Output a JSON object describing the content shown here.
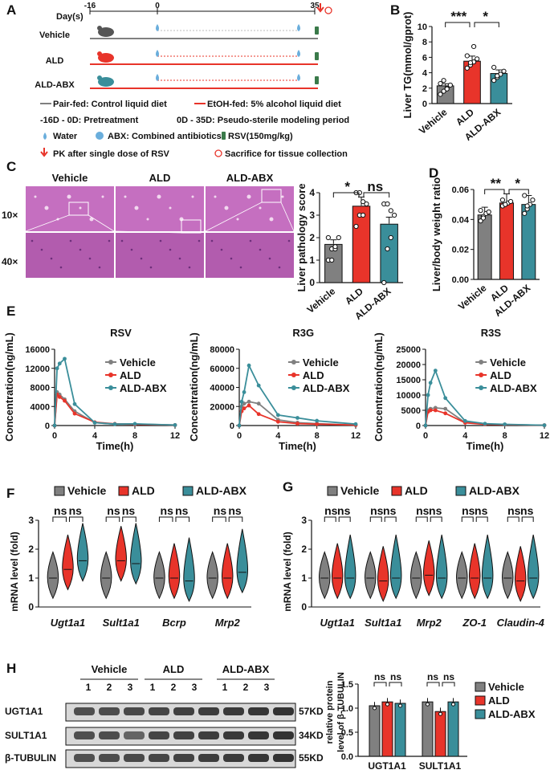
{
  "colors": {
    "vehicle": "#808080",
    "ald": "#e8342a",
    "abx": "#3a8e9a",
    "dark": "#222222",
    "wblight": "#d8d8d8"
  },
  "panelA": {
    "label": "A",
    "days_label": "Day(s)",
    "day_ticks": [
      "-16",
      "0",
      "35"
    ],
    "groups": [
      "Vehicle",
      "ALD",
      "ALD-ABX"
    ],
    "legend": [
      "Pair-fed: Control liquid diet",
      "EtOH-fed: 5% alcohol liquid diet",
      "-16D - 0D: Pretreatment",
      "0D - 35D: Pseudo-sterile modeling period",
      "Water",
      "ABX: Combined antibiotics",
      "RSV(150mg/kg)",
      "PK after single dose of RSV",
      "Sacrifice for tissue collection"
    ]
  },
  "panelB": {
    "label": "B",
    "ylabel": "Liver TG(mmol/gprot)",
    "sig": [
      "***",
      "*"
    ]
  },
  "panelC": {
    "label": "C",
    "columns": [
      "Vehicle",
      "ALD",
      "ALD-ABX"
    ],
    "rows": [
      "10×",
      "40×"
    ],
    "score_ylabel": "Liver pathology score",
    "sig": [
      "*",
      "ns"
    ]
  },
  "panelD": {
    "label": "D",
    "ylabel": "Liver/body weight ratio",
    "sig": [
      "**",
      "*"
    ]
  },
  "panelE": {
    "label": "E",
    "ylabel": "Concentration(ng/mL)",
    "xlabel": "Time(h)"
  },
  "panelF": {
    "label": "F",
    "ylabel": "mRNA  level (fold)"
  },
  "panelG": {
    "label": "G",
    "ylabel": "mRNA  level (fold)"
  },
  "panelH": {
    "label": "H",
    "groups": [
      "Vehicle",
      "ALD",
      "ALD-ABX"
    ],
    "lanes": [
      "1",
      "2",
      "3"
    ],
    "proteins": [
      "UGT1A1",
      "SULT1A1",
      "β-TUBULIN"
    ],
    "sizes": [
      "57KD",
      "34KD",
      "55KD"
    ],
    "ylabel1": "relative protein",
    "ylabel2": "level of β-TUBULIN"
  },
  "chart_data": [
    {
      "id": "B",
      "type": "bar",
      "title": "",
      "ylabel": "Liver TG(mmol/gprot)",
      "ylim": [
        0,
        10
      ],
      "categories": [
        "Vehicle",
        "ALD",
        "ALD-ABX"
      ],
      "values": [
        2.3,
        5.5,
        3.9
      ],
      "points": [
        [
          1.2,
          1.6,
          2.0,
          2.4,
          2.6,
          3.0,
          1.9
        ],
        [
          4.6,
          5.0,
          5.4,
          5.8,
          6.2,
          5.3,
          7.4
        ],
        [
          3.0,
          3.4,
          3.8,
          4.2,
          4.7,
          3.6
        ]
      ],
      "yticks": [
        "0",
        "2",
        "4",
        "6",
        "8",
        "10"
      ]
    },
    {
      "id": "C",
      "type": "bar",
      "title": "",
      "ylabel": "Liver pathology score",
      "ylim": [
        0,
        4
      ],
      "categories": [
        "Vehicle",
        "ALD",
        "ALD-ABX"
      ],
      "values": [
        1.7,
        3.4,
        2.6
      ],
      "points": [
        [
          1.0,
          1.5,
          1.5,
          2.0,
          2.0,
          1.0,
          1.6
        ],
        [
          2.5,
          3.0,
          3.0,
          3.5,
          4.0,
          4.0,
          3.6
        ],
        [
          0.0,
          1.5,
          2.0,
          3.0,
          3.5,
          3.5,
          3.2
        ]
      ],
      "yticks": [
        "0",
        "1",
        "2",
        "3",
        "4"
      ]
    },
    {
      "id": "D",
      "type": "bar",
      "title": "",
      "ylabel": "Liver/body weight ratio",
      "ylim": [
        0,
        0.06
      ],
      "categories": [
        "Vehicle",
        "ALD",
        "ALD-ABX"
      ],
      "values": [
        0.043,
        0.051,
        0.05
      ],
      "points": [
        [
          0.039,
          0.042,
          0.044,
          0.045,
          0.046,
          0.041
        ],
        [
          0.049,
          0.05,
          0.051,
          0.052,
          0.053,
          0.05
        ],
        [
          0.044,
          0.047,
          0.05,
          0.053,
          0.056,
          0.049
        ]
      ],
      "yticks": [
        "0.00",
        "0.02",
        "0.04",
        "0.06"
      ]
    },
    {
      "id": "E1",
      "type": "line",
      "title": "RSV",
      "xlabel": "Time(h)",
      "ylabel": "Concentration(ng/mL)",
      "x": [
        0,
        0.25,
        0.5,
        1,
        2,
        4,
        6,
        8,
        12
      ],
      "xlim": [
        0,
        12
      ],
      "ylim": [
        0,
        16000
      ],
      "yticks": [
        "0",
        "4000",
        "8000",
        "12000",
        "16000"
      ],
      "xticks": [
        "0",
        "4",
        "8",
        "12"
      ],
      "series": [
        {
          "name": "Vehicle",
          "values": [
            0,
            7000,
            6500,
            5500,
            3000,
            600,
            300,
            300,
            100
          ]
        },
        {
          "name": "ALD",
          "values": [
            0,
            6500,
            6000,
            5200,
            2500,
            700,
            350,
            250,
            100
          ]
        },
        {
          "name": "ALD-ABX",
          "values": [
            0,
            12000,
            13000,
            14000,
            4500,
            600,
            300,
            350,
            100
          ]
        }
      ]
    },
    {
      "id": "E2",
      "type": "line",
      "title": "R3G",
      "xlabel": "Time(h)",
      "ylabel": "",
      "x": [
        0,
        0.25,
        0.5,
        1,
        2,
        4,
        6,
        8,
        12
      ],
      "xlim": [
        0,
        12
      ],
      "ylim": [
        0,
        80000
      ],
      "yticks": [
        "0",
        "20000",
        "40000",
        "60000",
        "80000"
      ],
      "xticks": [
        "0",
        "4",
        "8",
        "12"
      ],
      "series": [
        {
          "name": "Vehicle",
          "values": [
            0,
            20000,
            23000,
            25000,
            23000,
            6000,
            3000,
            2000,
            500
          ]
        },
        {
          "name": "ALD",
          "values": [
            0,
            15000,
            18000,
            21000,
            12000,
            4000,
            2000,
            1500,
            500
          ]
        },
        {
          "name": "ALD-ABX",
          "values": [
            0,
            25000,
            35000,
            63000,
            42000,
            11000,
            8000,
            5000,
            1500
          ]
        }
      ]
    },
    {
      "id": "E3",
      "type": "line",
      "title": "R3S",
      "xlabel": "Time(h)",
      "ylabel": "",
      "x": [
        0,
        0.25,
        0.5,
        1,
        2,
        4,
        6,
        8,
        12
      ],
      "xlim": [
        0,
        12
      ],
      "ylim": [
        0,
        25000
      ],
      "yticks": [
        "0",
        "5000",
        "10000",
        "15000",
        "20000",
        "25000"
      ],
      "xticks": [
        "0",
        "4",
        "8",
        "12"
      ],
      "series": [
        {
          "name": "Vehicle",
          "values": [
            0,
            5000,
            5500,
            5800,
            5500,
            1000,
            500,
            300,
            100
          ]
        },
        {
          "name": "ALD",
          "values": [
            0,
            4500,
            5000,
            5000,
            4000,
            900,
            400,
            300,
            100
          ]
        },
        {
          "name": "ALD-ABX",
          "values": [
            0,
            10000,
            14000,
            18000,
            9000,
            1500,
            600,
            400,
            100
          ]
        }
      ]
    },
    {
      "id": "F",
      "type": "violin",
      "ylabel": "mRNA  level (fold)",
      "ylim": [
        0,
        3
      ],
      "categories": [
        "Ugt1a1",
        "Sult1a1",
        "Bcrp",
        "Mrp2"
      ],
      "yticks": [
        "0",
        "1",
        "2",
        "3"
      ],
      "legend": [
        "Vehicle",
        "ALD",
        "ALD-ABX"
      ],
      "sig": [
        [
          "ns",
          "ns"
        ],
        [
          "ns",
          "ns"
        ],
        [
          "ns",
          "ns"
        ],
        [
          "ns",
          "ns"
        ]
      ],
      "medians": [
        [
          1.0,
          1.3,
          1.6
        ],
        [
          1.0,
          1.6,
          1.5
        ],
        [
          1.0,
          1.0,
          0.9
        ],
        [
          1.0,
          1.0,
          1.2
        ]
      ]
    },
    {
      "id": "G",
      "type": "violin",
      "ylabel": "mRNA  level (fold)",
      "ylim": [
        0,
        3
      ],
      "categories": [
        "Ugt1a1",
        "Sult1a1",
        "Mrp2",
        "ZO-1",
        "Claudin-4"
      ],
      "yticks": [
        "0",
        "1",
        "2",
        "3"
      ],
      "legend": [
        "Vehicle",
        "ALD",
        "ALD-ABX"
      ],
      "sig": [
        [
          "ns",
          "ns"
        ],
        [
          "ns",
          "ns"
        ],
        [
          "ns",
          "ns"
        ],
        [
          "ns",
          "ns"
        ],
        [
          "ns",
          "ns"
        ]
      ],
      "medians": [
        [
          1.0,
          1.0,
          1.0
        ],
        [
          1.0,
          0.9,
          1.0
        ],
        [
          1.0,
          1.1,
          1.0
        ],
        [
          1.0,
          1.0,
          1.0
        ],
        [
          1.0,
          0.9,
          1.0
        ]
      ]
    },
    {
      "id": "H",
      "type": "bar",
      "ylabel": "relative protein level of β-TUBULIN",
      "ylim": [
        0,
        1.5
      ],
      "categories": [
        "UGT1A1",
        "SULT1A1"
      ],
      "yticks": [
        "0.0",
        "0.5",
        "1.0",
        "1.5"
      ],
      "series": [
        {
          "name": "Vehicle",
          "values": [
            1.05,
            1.13
          ]
        },
        {
          "name": "ALD",
          "values": [
            1.13,
            0.93
          ]
        },
        {
          "name": "ALD-ABX",
          "values": [
            1.1,
            1.13
          ]
        }
      ],
      "sig": [
        [
          "ns",
          "ns"
        ],
        [
          "ns",
          "ns"
        ]
      ]
    }
  ]
}
